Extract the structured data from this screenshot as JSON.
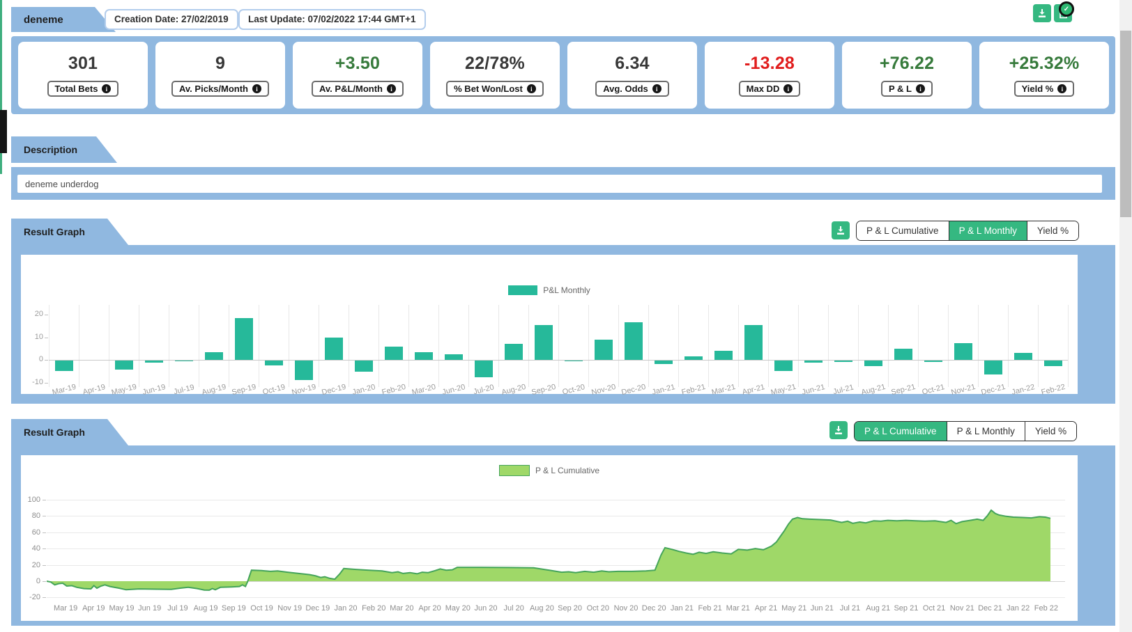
{
  "header": {
    "tab": "deneme",
    "creation_date": "Creation Date: 27/02/2019",
    "last_update": "Last Update: 07/02/2022 17:44 GMT+1"
  },
  "stats": [
    {
      "value": "301",
      "label": "Total Bets",
      "color": "#383838"
    },
    {
      "value": "9",
      "label": "Av. Picks/Month",
      "color": "#383838"
    },
    {
      "value": "+3.50",
      "label": "Av. P&L/Month",
      "color": "#367a3b"
    },
    {
      "value": "22/78%",
      "label": "% Bet Won/Lost",
      "color": "#383838"
    },
    {
      "value": "6.34",
      "label": "Avg. Odds",
      "color": "#383838"
    },
    {
      "value": "-13.28",
      "label": "Max DD",
      "color": "#e11d1d"
    },
    {
      "value": "+76.22",
      "label": "P & L",
      "color": "#367a3b"
    },
    {
      "value": "+25.32%",
      "label": "Yield %",
      "color": "#367a3b"
    }
  ],
  "description": {
    "tab": "Description",
    "text": "deneme underdog"
  },
  "result_sections": [
    {
      "tab": "Result Graph",
      "buttons": [
        {
          "label": "P & L Cumulative",
          "active": false
        },
        {
          "label": "P & L Monthly",
          "active": true
        },
        {
          "label": "Yield %",
          "active": false
        }
      ]
    },
    {
      "tab": "Result Graph",
      "buttons": [
        {
          "label": "P & L Cumulative",
          "active": true
        },
        {
          "label": "P & L Monthly",
          "active": false
        },
        {
          "label": "Yield %",
          "active": false
        }
      ]
    }
  ],
  "chart_data": [
    {
      "type": "bar",
      "legend": "P&L Monthly",
      "bar_color": "#26b99a",
      "yticks": [
        20,
        10,
        0,
        -10
      ],
      "ylim": [
        -12,
        22
      ],
      "grid": "vertical",
      "legend_position": "top-center",
      "categories": [
        "Mar-19",
        "Apr-19",
        "May-19",
        "Jun-19",
        "Jul-19",
        "Aug-19",
        "Sep-19",
        "Oct-19",
        "Nov-19",
        "Dec-19",
        "Jan-20",
        "Feb-20",
        "Mar-20",
        "Jun-20",
        "Jul-20",
        "Aug-20",
        "Sep-20",
        "Oct-20",
        "Nov-20",
        "Dec-20",
        "Jan-21",
        "Feb-21",
        "Mar-21",
        "Apr-21",
        "May-21",
        "Jun-21",
        "Jul-21",
        "Aug-21",
        "Sep-21",
        "Oct-21",
        "Nov-21",
        "Dec-21",
        "Jan-22",
        "Feb-22"
      ],
      "values": [
        -4.5,
        0,
        -4,
        -1,
        -0.3,
        3.5,
        18.5,
        -2,
        -8.5,
        10,
        -5,
        6,
        3.5,
        2.5,
        -7.5,
        7,
        15.5,
        -0.3,
        9,
        16.5,
        -1.5,
        1.5,
        4,
        15.5,
        -4.5,
        -1,
        -0.5,
        -2.5,
        5,
        -0.5,
        7.5,
        -6,
        3,
        -2.5
      ]
    },
    {
      "type": "area",
      "legend": "P & L Cumulative",
      "fill_color": "#9fd868",
      "line_color": "#44a45a",
      "yticks": [
        100,
        80,
        60,
        40,
        20,
        0,
        -20
      ],
      "ylim": [
        -25,
        110
      ],
      "grid": "horizontal",
      "legend_position": "top-center",
      "x_labels": [
        "Mar 19",
        "Apr 19",
        "May 19",
        "Jun 19",
        "Jul 19",
        "Aug 19",
        "Sep 19",
        "Oct 19",
        "Nov 19",
        "Dec 19",
        "Jan 20",
        "Feb 20",
        "Mar 20",
        "Apr 20",
        "May 20",
        "Jun 20",
        "Jul 20",
        "Aug 20",
        "Sep 20",
        "Oct 20",
        "Nov 20",
        "Dec 20",
        "Jan 21",
        "Feb 21",
        "Mar 21",
        "Apr 21",
        "May 21",
        "Jun 21",
        "Jul 21",
        "Aug 21",
        "Sep 21",
        "Oct 21",
        "Nov 21",
        "Dec 21",
        "Jan 22",
        "Feb 22"
      ],
      "final_value": 76.22,
      "points": [
        [
          0.0,
          0
        ],
        [
          0.004,
          -1
        ],
        [
          0.008,
          -4.5
        ],
        [
          0.012,
          -3
        ],
        [
          0.016,
          -2.5
        ],
        [
          0.02,
          -6
        ],
        [
          0.025,
          -5.5
        ],
        [
          0.03,
          -7.5
        ],
        [
          0.037,
          -9
        ],
        [
          0.044,
          -9.5
        ],
        [
          0.047,
          -5.5
        ],
        [
          0.05,
          -8.5
        ],
        [
          0.054,
          -6
        ],
        [
          0.058,
          -4.5
        ],
        [
          0.063,
          -6.5
        ],
        [
          0.072,
          -8.5
        ],
        [
          0.079,
          -10.5
        ],
        [
          0.092,
          -9.5
        ],
        [
          0.11,
          -9.8
        ],
        [
          0.124,
          -10
        ],
        [
          0.133,
          -8.5
        ],
        [
          0.141,
          -7.5
        ],
        [
          0.15,
          -9
        ],
        [
          0.157,
          -10.8
        ],
        [
          0.162,
          -11
        ],
        [
          0.165,
          -9
        ],
        [
          0.168,
          -10.5
        ],
        [
          0.173,
          -7.5
        ],
        [
          0.184,
          -7
        ],
        [
          0.192,
          -6.5
        ],
        [
          0.195,
          -4.5
        ],
        [
          0.198,
          -6.5
        ],
        [
          0.2,
          -1
        ],
        [
          0.204,
          13.5
        ],
        [
          0.214,
          13
        ],
        [
          0.223,
          12
        ],
        [
          0.23,
          12.5
        ],
        [
          0.24,
          11
        ],
        [
          0.251,
          9.5
        ],
        [
          0.262,
          8
        ],
        [
          0.268,
          6.5
        ],
        [
          0.273,
          4.5
        ],
        [
          0.277,
          5.5
        ],
        [
          0.282,
          3.5
        ],
        [
          0.287,
          2.5
        ],
        [
          0.292,
          9
        ],
        [
          0.296,
          15.5
        ],
        [
          0.307,
          14.5
        ],
        [
          0.321,
          13.5
        ],
        [
          0.334,
          12.5
        ],
        [
          0.344,
          10.5
        ],
        [
          0.35,
          11.5
        ],
        [
          0.355,
          9.5
        ],
        [
          0.362,
          10.5
        ],
        [
          0.369,
          9
        ],
        [
          0.374,
          11
        ],
        [
          0.38,
          10.5
        ],
        [
          0.387,
          13
        ],
        [
          0.392,
          15
        ],
        [
          0.398,
          13.5
        ],
        [
          0.404,
          14
        ],
        [
          0.409,
          17
        ],
        [
          0.433,
          17
        ],
        [
          0.461,
          16.7
        ],
        [
          0.485,
          16.4
        ],
        [
          0.503,
          13
        ],
        [
          0.513,
          11
        ],
        [
          0.52,
          11.5
        ],
        [
          0.527,
          10.5
        ],
        [
          0.536,
          12
        ],
        [
          0.545,
          11
        ],
        [
          0.553,
          12.5
        ],
        [
          0.56,
          11.5
        ],
        [
          0.569,
          12
        ],
        [
          0.583,
          12
        ],
        [
          0.597,
          12.5
        ],
        [
          0.606,
          13.5
        ],
        [
          0.612,
          32
        ],
        [
          0.616,
          41
        ],
        [
          0.623,
          39
        ],
        [
          0.63,
          36.5
        ],
        [
          0.637,
          34.5
        ],
        [
          0.644,
          33
        ],
        [
          0.65,
          35.5
        ],
        [
          0.657,
          34
        ],
        [
          0.664,
          36
        ],
        [
          0.673,
          34.5
        ],
        [
          0.682,
          33.5
        ],
        [
          0.689,
          39
        ],
        [
          0.698,
          38
        ],
        [
          0.706,
          40
        ],
        [
          0.714,
          38.5
        ],
        [
          0.722,
          43
        ],
        [
          0.727,
          48
        ],
        [
          0.731,
          55
        ],
        [
          0.735,
          62
        ],
        [
          0.739,
          70
        ],
        [
          0.743,
          76
        ],
        [
          0.748,
          78
        ],
        [
          0.753,
          76.5
        ],
        [
          0.76,
          76
        ],
        [
          0.771,
          75.5
        ],
        [
          0.781,
          75
        ],
        [
          0.792,
          72
        ],
        [
          0.798,
          73.5
        ],
        [
          0.803,
          71
        ],
        [
          0.81,
          72.5
        ],
        [
          0.816,
          71.5
        ],
        [
          0.824,
          74
        ],
        [
          0.831,
          73.5
        ],
        [
          0.838,
          74.5
        ],
        [
          0.847,
          74
        ],
        [
          0.856,
          74.5
        ],
        [
          0.866,
          74
        ],
        [
          0.875,
          73.5
        ],
        [
          0.885,
          74
        ],
        [
          0.896,
          72
        ],
        [
          0.901,
          74.5
        ],
        [
          0.906,
          70.5
        ],
        [
          0.912,
          73
        ],
        [
          0.92,
          74.5
        ],
        [
          0.927,
          76
        ],
        [
          0.933,
          74.5
        ],
        [
          0.937,
          80
        ],
        [
          0.941,
          87
        ],
        [
          0.945,
          83
        ],
        [
          0.949,
          81
        ],
        [
          0.956,
          79.5
        ],
        [
          0.963,
          78.5
        ],
        [
          0.972,
          78
        ],
        [
          0.981,
          77.5
        ],
        [
          0.989,
          79
        ],
        [
          0.995,
          78.5
        ],
        [
          1.0,
          77
        ]
      ]
    }
  ],
  "colors": {
    "panel_blue": "#90b8e0",
    "button_green": "#35b881",
    "bar_teal": "#26b99a",
    "area_fill": "#9fd868",
    "area_line": "#44a45a"
  }
}
